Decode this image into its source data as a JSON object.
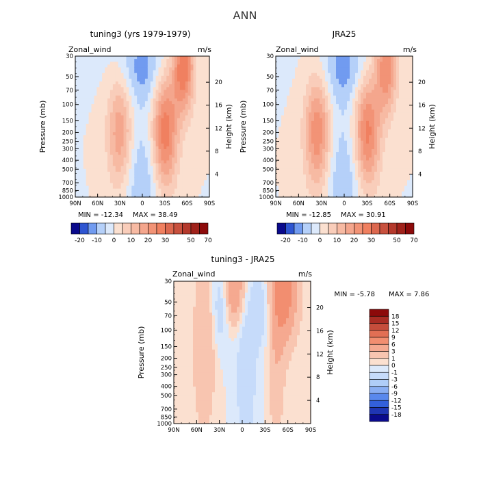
{
  "figure_title": "ANN",
  "colors": {
    "neg_deep": "#0a0a8c",
    "neg_mid": "#3a6ee8",
    "neg_light": "#a8c8f8",
    "neutral_light": "#dce9fb",
    "pos_light": "#fbe0d0",
    "pos_mid": "#f08060",
    "pos_deep": "#8c0a0a"
  },
  "chart_data": [
    {
      "type": "heatmap",
      "title": "tuning3 (yrs 1979-1979)",
      "field_label": "Zonal_wind",
      "units": "m/s",
      "ylabel": "Pressure (mb)",
      "ylabel_right": "Height (km)",
      "xlabel": "",
      "x_ticks": [
        "90N",
        "60N",
        "30N",
        "0",
        "30S",
        "60S",
        "90S"
      ],
      "y_ticks": [
        "30",
        "50",
        "70",
        "100",
        "150",
        "200",
        "250",
        "300",
        "400",
        "500",
        "700",
        "850",
        "1000"
      ],
      "y_ticks_right": [
        "20",
        "16",
        "12",
        "8",
        "4"
      ],
      "ylim": [
        1000,
        30
      ],
      "y_scale": "log",
      "min_label": "MIN = -12.34",
      "max_label": "MAX = 38.49",
      "colorbar_labels": [
        "-20",
        "-10",
        "0",
        "10",
        "20",
        "30",
        "50",
        "70"
      ],
      "colorbar_levels": [
        -25,
        -20,
        -15,
        -10,
        -5,
        0,
        5,
        10,
        15,
        20,
        25,
        30,
        35,
        40,
        50,
        60,
        70
      ],
      "features": [
        {
          "lat": 30,
          "p": 200,
          "value": 20,
          "spread_lat": 12,
          "spread_logp": 0.45
        },
        {
          "lat": -30,
          "p": 200,
          "value": 30,
          "spread_lat": 12,
          "spread_logp": 0.45
        },
        {
          "lat": -55,
          "p": 40,
          "value": 30,
          "spread_lat": 10,
          "spread_logp": 0.35
        },
        {
          "lat": 0,
          "p": 40,
          "value": -12,
          "spread_lat": 25,
          "spread_logp": 0.3
        },
        {
          "lat": 0,
          "p": 700,
          "value": -10,
          "spread_lat": 20,
          "spread_logp": 0.5
        }
      ]
    },
    {
      "type": "heatmap",
      "title": "JRA25",
      "field_label": "Zonal_wind",
      "units": "m/s",
      "ylabel": "Pressure (mb)",
      "ylabel_right": "Height (km)",
      "xlabel": "",
      "x_ticks": [
        "90N",
        "60N",
        "30N",
        "0",
        "30S",
        "60S",
        "90S"
      ],
      "y_ticks": [
        "30",
        "50",
        "70",
        "100",
        "150",
        "200",
        "250",
        "300",
        "400",
        "500",
        "700",
        "850",
        "1000"
      ],
      "y_ticks_right": [
        "20",
        "16",
        "12",
        "8",
        "4"
      ],
      "ylim": [
        1000,
        30
      ],
      "y_scale": "log",
      "min_label": "MIN = -12.85",
      "max_label": "MAX = 30.91",
      "colorbar_labels": [
        "-20",
        "-10",
        "0",
        "10",
        "20",
        "30",
        "50",
        "70"
      ],
      "colorbar_levels": [
        -25,
        -20,
        -15,
        -10,
        -5,
        0,
        5,
        10,
        15,
        20,
        25,
        30,
        35,
        40,
        50,
        60,
        70
      ],
      "features": [
        {
          "lat": 35,
          "p": 200,
          "value": 25,
          "spread_lat": 12,
          "spread_logp": 0.45
        },
        {
          "lat": -30,
          "p": 200,
          "value": 28,
          "spread_lat": 12,
          "spread_logp": 0.45
        },
        {
          "lat": -55,
          "p": 40,
          "value": 25,
          "spread_lat": 10,
          "spread_logp": 0.35
        },
        {
          "lat": 0,
          "p": 40,
          "value": -12,
          "spread_lat": 25,
          "spread_logp": 0.3
        },
        {
          "lat": 0,
          "p": 700,
          "value": -10,
          "spread_lat": 20,
          "spread_logp": 0.5
        }
      ]
    },
    {
      "type": "heatmap",
      "title": "tuning3 - JRA25",
      "field_label": "Zonal_wind",
      "units": "m/s",
      "ylabel": "Pressure (mb)",
      "ylabel_right": "Height (km)",
      "xlabel": "",
      "x_ticks": [
        "90N",
        "60N",
        "30N",
        "0",
        "30S",
        "60S",
        "90S"
      ],
      "y_ticks": [
        "30",
        "50",
        "70",
        "100",
        "150",
        "200",
        "250",
        "300",
        "400",
        "500",
        "700",
        "850",
        "1000"
      ],
      "y_ticks_right": [
        "20",
        "16",
        "12",
        "8",
        "4"
      ],
      "ylim": [
        1000,
        30
      ],
      "y_scale": "log",
      "min_label": "MIN = -5.78",
      "max_label": "MAX = 7.86",
      "colorbar_labels": [
        "18",
        "15",
        "12",
        "9",
        "6",
        "3",
        "1",
        "0",
        "-1",
        "-3",
        "-6",
        "-9",
        "-12",
        "-15",
        "-18"
      ],
      "colorbar_levels": [
        -21,
        -18,
        -15,
        -12,
        -9,
        -6,
        -3,
        -1,
        0,
        1,
        3,
        6,
        9,
        12,
        15,
        18,
        21
      ],
      "features": [
        {
          "lat": -55,
          "p": 40,
          "value": 8,
          "spread_lat": 12,
          "spread_logp": 0.35
        },
        {
          "lat": 10,
          "p": 35,
          "value": 6,
          "spread_lat": 8,
          "spread_logp": 0.25
        },
        {
          "lat": 50,
          "p": 150,
          "value": 3,
          "spread_lat": 10,
          "spread_logp": 0.6
        },
        {
          "lat": -45,
          "p": 200,
          "value": 2.5,
          "spread_lat": 8,
          "spread_logp": 0.6
        },
        {
          "lat": -5,
          "p": 300,
          "value": -2,
          "spread_lat": 10,
          "spread_logp": 0.6
        },
        {
          "lat": 30,
          "p": 60,
          "value": -2,
          "spread_lat": 8,
          "spread_logp": 0.3
        },
        {
          "lat": -25,
          "p": 60,
          "value": -2,
          "spread_lat": 10,
          "spread_logp": 0.3
        }
      ]
    }
  ]
}
